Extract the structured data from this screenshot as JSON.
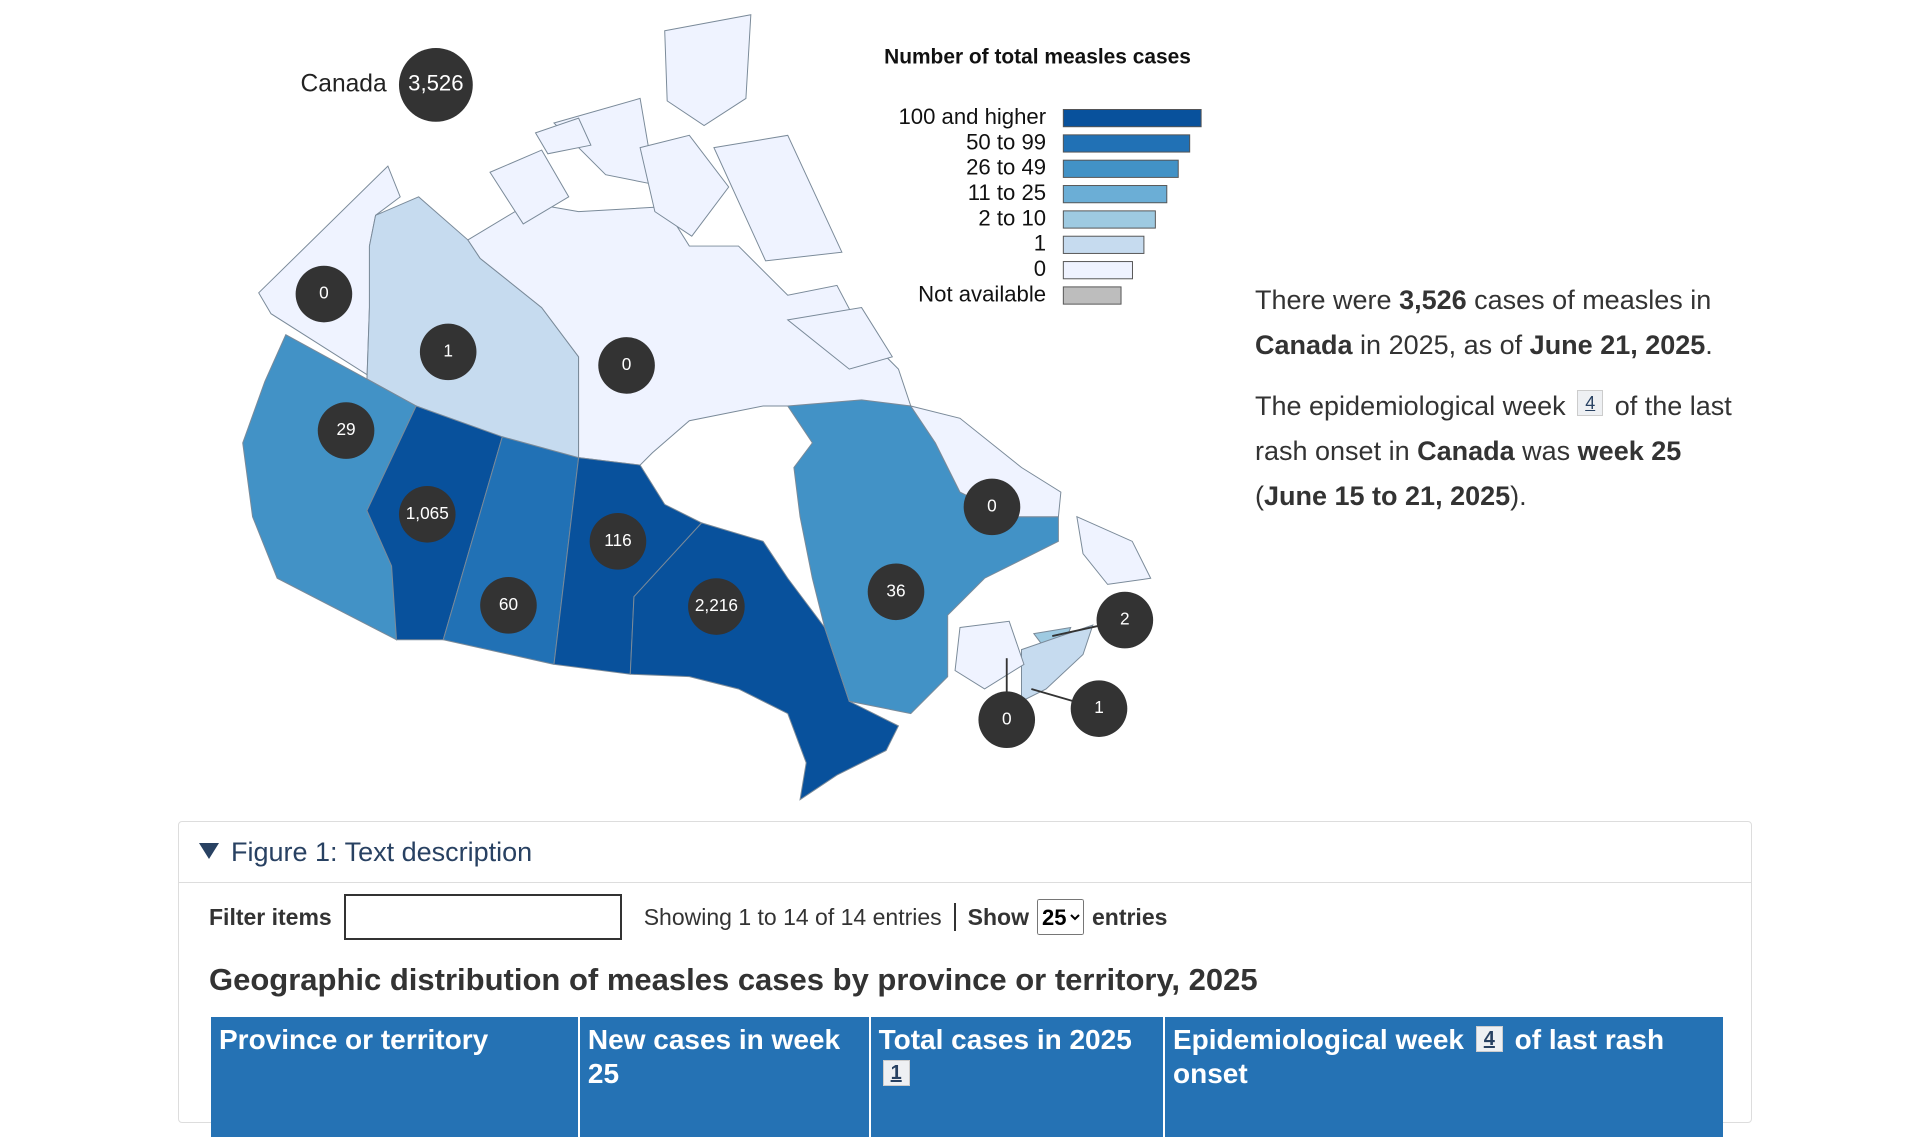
{
  "map": {
    "total": {
      "label": "Canada",
      "value": "3,526"
    },
    "regions": [
      {
        "value": "0",
        "color": "#eff3ff"
      },
      {
        "value": "1",
        "color": "#c6dbef"
      },
      {
        "value": "0",
        "color": "#eff3ff"
      },
      {
        "value": "29",
        "color": "#4292c6"
      },
      {
        "value": "1,065",
        "color": "#08519c"
      },
      {
        "value": "60",
        "color": "#2171b5"
      },
      {
        "value": "116",
        "color": "#08519c"
      },
      {
        "value": "2,216",
        "color": "#08519c"
      },
      {
        "value": "36",
        "color": "#4292c6"
      },
      {
        "value": "0",
        "color": "#eff3ff"
      },
      {
        "value": "2",
        "color": "#9ecae1"
      },
      {
        "value": "1",
        "color": "#c6dbef"
      },
      {
        "value": "0",
        "color": "#eff3ff"
      }
    ]
  },
  "legend": {
    "title": "Number of total measles cases",
    "items": [
      {
        "label": "100 and higher",
        "color": "#08519c"
      },
      {
        "label": "50 to 99",
        "color": "#2171b5"
      },
      {
        "label": "26 to 49",
        "color": "#4292c6"
      },
      {
        "label": "11 to 25",
        "color": "#6baed6"
      },
      {
        "label": "2 to 10",
        "color": "#9ecae1"
      },
      {
        "label": "1",
        "color": "#c6dbef"
      },
      {
        "label": "0",
        "color": "#eff3ff"
      },
      {
        "label": "Not available",
        "color": "#bdbdbd"
      }
    ]
  },
  "summary": {
    "paragraphs": [
      [
        {
          "text": "There were ",
          "bold": false
        },
        {
          "text": "3,526",
          "bold": true
        },
        {
          "text": " cases of measles in ",
          "bold": false
        },
        {
          "text": "Canada",
          "bold": true
        },
        {
          "text": " in 2025, as of ",
          "bold": false
        },
        {
          "text": "June 21, 2025",
          "bold": true
        },
        {
          "text": ".",
          "bold": false
        }
      ],
      [
        {
          "text": "The epidemiological week ",
          "bold": false
        },
        {
          "text": "4",
          "footnote": true
        },
        {
          "text": " of the last rash onset in ",
          "bold": false
        },
        {
          "text": "Canada",
          "bold": true
        },
        {
          "text": " was ",
          "bold": false
        },
        {
          "text": "week 25",
          "bold": true
        },
        {
          "text": " (",
          "bold": false
        },
        {
          "text": "June 15 to 21, 2025",
          "bold": true
        },
        {
          "text": ").",
          "bold": false
        }
      ]
    ]
  },
  "figure": {
    "summary": "Figure 1: Text description",
    "filter_label": "Filter items",
    "info": "Showing 1 to 14 of 14 entries",
    "show_label": "Show",
    "page_size": "25",
    "entries_label": "entries",
    "table": {
      "title": "Geographic distribution of measles cases by province or territory, 2025",
      "headers": [
        [
          {
            "text": "Province or territory"
          }
        ],
        [
          {
            "text": "New cases in week 25"
          }
        ],
        [
          {
            "text": "Total cases in 2025 "
          },
          {
            "text": "1",
            "footnote": true
          }
        ],
        [
          {
            "text": "Epidemiological week "
          },
          {
            "text": "4",
            "footnote": true
          },
          {
            "text": " of last rash onset"
          }
        ]
      ]
    }
  }
}
